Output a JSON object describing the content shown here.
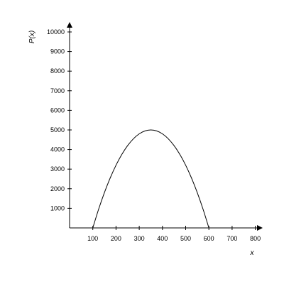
{
  "chart_data": {
    "type": "line",
    "xlabel": "x",
    "ylabel": "P(x)",
    "xlim": [
      0,
      800
    ],
    "ylim": [
      0,
      10000
    ],
    "x_ticks": [
      "100",
      "200",
      "300",
      "400",
      "500",
      "600",
      "700",
      "800"
    ],
    "y_ticks": [
      "1000",
      "2000",
      "3000",
      "4000",
      "5000",
      "6000",
      "7000",
      "8000",
      "9000",
      "10000"
    ],
    "grid": false,
    "series": [
      {
        "x": [
          100,
          125,
          150,
          175,
          200,
          225,
          250,
          275,
          300,
          325,
          350,
          375,
          400,
          425,
          450,
          475,
          500,
          525,
          550,
          575,
          600
        ],
        "y": [
          0,
          950,
          1800,
          2550,
          3200,
          3750,
          4200,
          4550,
          4800,
          4950,
          5000,
          4950,
          4800,
          4550,
          4200,
          3750,
          3200,
          2550,
          1800,
          950,
          0
        ]
      }
    ]
  }
}
